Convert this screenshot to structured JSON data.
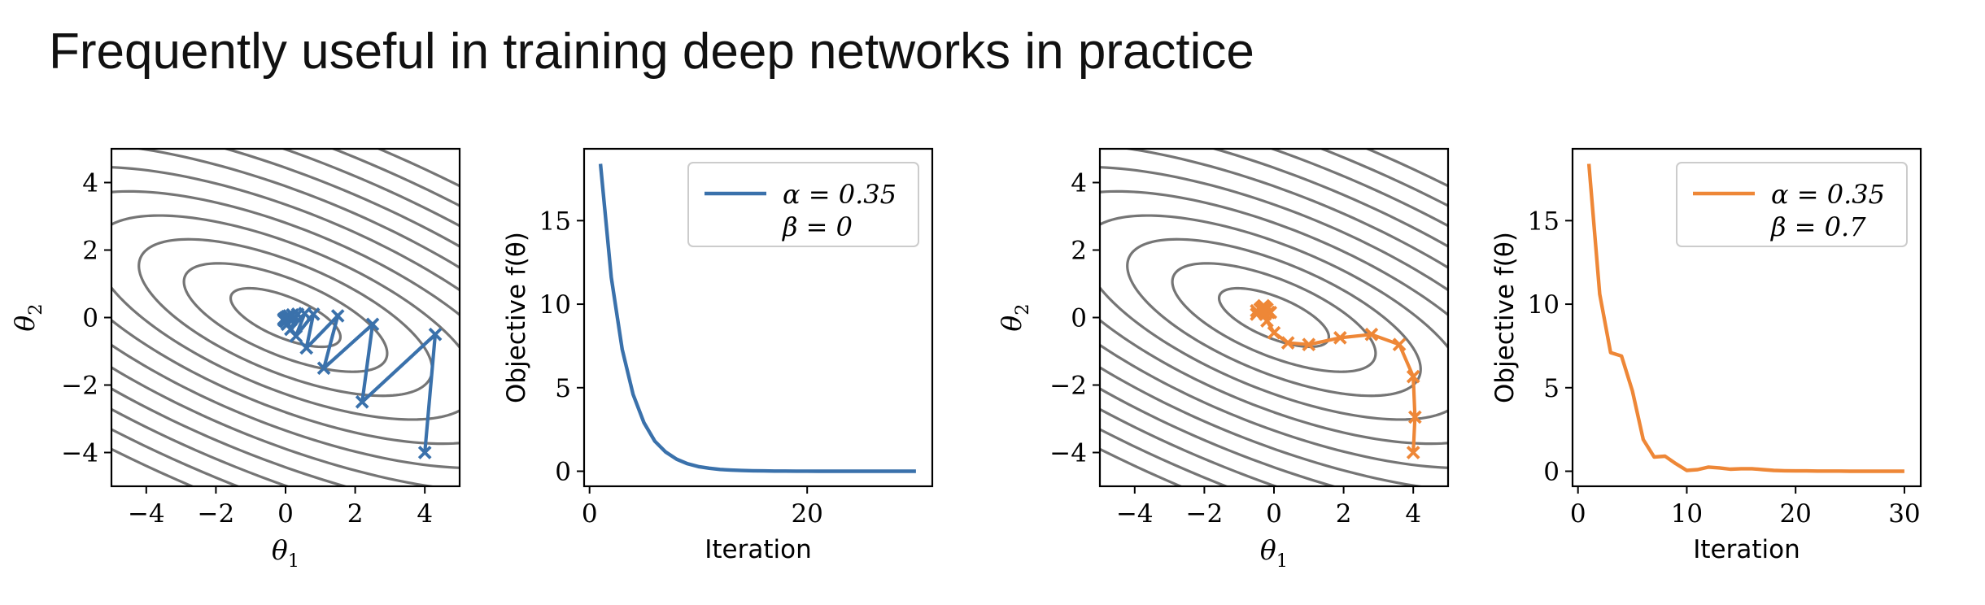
{
  "title": "Frequently useful in training deep networks in practice",
  "colors": {
    "blue": "#3a71ab",
    "orange": "#ee8737",
    "contour": "#757575",
    "axis": "#000000"
  },
  "chart_data": [
    {
      "type": "contour",
      "xlabel": "θ1",
      "ylabel": "θ2",
      "xlim": [
        -5,
        5
      ],
      "ylim": [
        -5,
        5
      ],
      "xticks": [
        -4,
        -2,
        0,
        2,
        4
      ],
      "yticks": [
        -4,
        -2,
        0,
        2,
        4
      ],
      "xtick_labels": [
        "−4",
        "−2",
        "0",
        "2",
        "4"
      ],
      "ytick_labels": [
        "−4",
        "−2",
        "0",
        "2",
        "4"
      ],
      "contour_levels": [
        0.7,
        2.4,
        5.0,
        8.5,
        13.0,
        18.5,
        25.0,
        32.5,
        41.0,
        50.5,
        61.0
      ],
      "series": [
        {
          "color": "#3a71ab",
          "x": [
            4.0,
            4.3,
            2.2,
            2.5,
            1.1,
            1.5,
            0.6,
            0.8,
            0.3,
            0.55,
            0.15,
            0.35,
            0.05,
            0.2,
            0.0,
            0.1,
            -0.05,
            0.05,
            -0.05,
            0.0
          ],
          "y": [
            -4.0,
            -0.5,
            -2.5,
            -0.2,
            -1.5,
            0.05,
            -0.9,
            0.1,
            -0.55,
            0.12,
            -0.35,
            0.1,
            -0.2,
            0.08,
            -0.12,
            0.05,
            -0.08,
            0.03,
            -0.04,
            0.0
          ]
        }
      ]
    },
    {
      "type": "line",
      "xlabel": "Iteration",
      "ylabel": "Objective f(θ)",
      "xlim": [
        -0.5,
        31.5
      ],
      "ylim": [
        -0.9,
        19.3
      ],
      "xticks": [
        0,
        20
      ],
      "yticks": [
        0,
        5,
        10,
        15
      ],
      "xtick_labels": [
        "0",
        "20"
      ],
      "ytick_labels": [
        "0",
        "5",
        "10",
        "15"
      ],
      "legend_position": "top-right",
      "legend_lines": [
        "α = 0.35",
        "β = 0"
      ],
      "series": [
        {
          "color": "#3a71ab",
          "x": [
            1,
            2,
            3,
            4,
            5,
            6,
            7,
            8,
            9,
            10,
            11,
            12,
            13,
            14,
            15,
            16,
            17,
            18,
            19,
            20,
            21,
            22,
            23,
            24,
            25,
            26,
            27,
            28,
            29,
            30
          ],
          "y": [
            18.4,
            11.6,
            7.3,
            4.6,
            2.9,
            1.8,
            1.15,
            0.72,
            0.45,
            0.28,
            0.18,
            0.11,
            0.07,
            0.045,
            0.03,
            0.02,
            0.012,
            0.008,
            0.005,
            0.003,
            0.002,
            0.001,
            0.001,
            0.0,
            0.0,
            0.0,
            0.0,
            0.0,
            0.0,
            0.0
          ]
        }
      ]
    },
    {
      "type": "contour",
      "xlabel": "θ1",
      "ylabel": "θ2",
      "xlim": [
        -5,
        5
      ],
      "ylim": [
        -5,
        5
      ],
      "xticks": [
        -4,
        -2,
        0,
        2,
        4
      ],
      "yticks": [
        -4,
        -2,
        0,
        2,
        4
      ],
      "xtick_labels": [
        "−4",
        "−2",
        "0",
        "2",
        "4"
      ],
      "ytick_labels": [
        "−4",
        "−2",
        "0",
        "2",
        "4"
      ],
      "contour_levels": [
        0.7,
        2.4,
        5.0,
        8.5,
        13.0,
        18.5,
        25.0,
        32.5,
        41.0,
        50.5,
        61.0
      ],
      "series": [
        {
          "color": "#ee8737",
          "x": [
            4.0,
            4.05,
            4.0,
            3.6,
            2.8,
            1.9,
            1.0,
            0.4,
            0.0,
            -0.2,
            -0.25,
            -0.15,
            -0.35,
            -0.5,
            -0.3,
            -0.1,
            -0.5,
            -0.2,
            -0.3,
            -0.4,
            -0.25
          ],
          "y": [
            -4.0,
            -2.95,
            -1.75,
            -0.8,
            -0.5,
            -0.6,
            -0.8,
            -0.75,
            -0.45,
            -0.1,
            0.1,
            0.15,
            0.3,
            0.2,
            0.35,
            0.15,
            0.1,
            0.25,
            0.2,
            0.25,
            0.3
          ]
        }
      ]
    },
    {
      "type": "line",
      "xlabel": "Iteration",
      "ylabel": "Objective f(θ)",
      "xlim": [
        -0.5,
        31.5
      ],
      "ylim": [
        -0.9,
        19.3
      ],
      "xticks": [
        0,
        10,
        20,
        30
      ],
      "yticks": [
        0,
        5,
        10,
        15
      ],
      "xtick_labels": [
        "0",
        "10",
        "20",
        "30"
      ],
      "ytick_labels": [
        "0",
        "5",
        "10",
        "15"
      ],
      "legend_position": "top-right",
      "legend_lines": [
        "α = 0.35",
        "β = 0.7"
      ],
      "series": [
        {
          "color": "#ee8737",
          "x": [
            1,
            2,
            3,
            4,
            5,
            6,
            7,
            8,
            9,
            10,
            11,
            12,
            13,
            14,
            15,
            16,
            17,
            18,
            19,
            20,
            21,
            22,
            23,
            24,
            25,
            26,
            27,
            28,
            29,
            30
          ],
          "y": [
            18.4,
            10.6,
            7.1,
            6.9,
            4.8,
            1.9,
            0.85,
            0.9,
            0.45,
            0.05,
            0.1,
            0.25,
            0.2,
            0.12,
            0.15,
            0.15,
            0.1,
            0.05,
            0.03,
            0.02,
            0.02,
            0.01,
            0.01,
            0.01,
            0.0,
            0.0,
            0.0,
            0.0,
            0.0,
            0.0
          ]
        }
      ]
    }
  ]
}
